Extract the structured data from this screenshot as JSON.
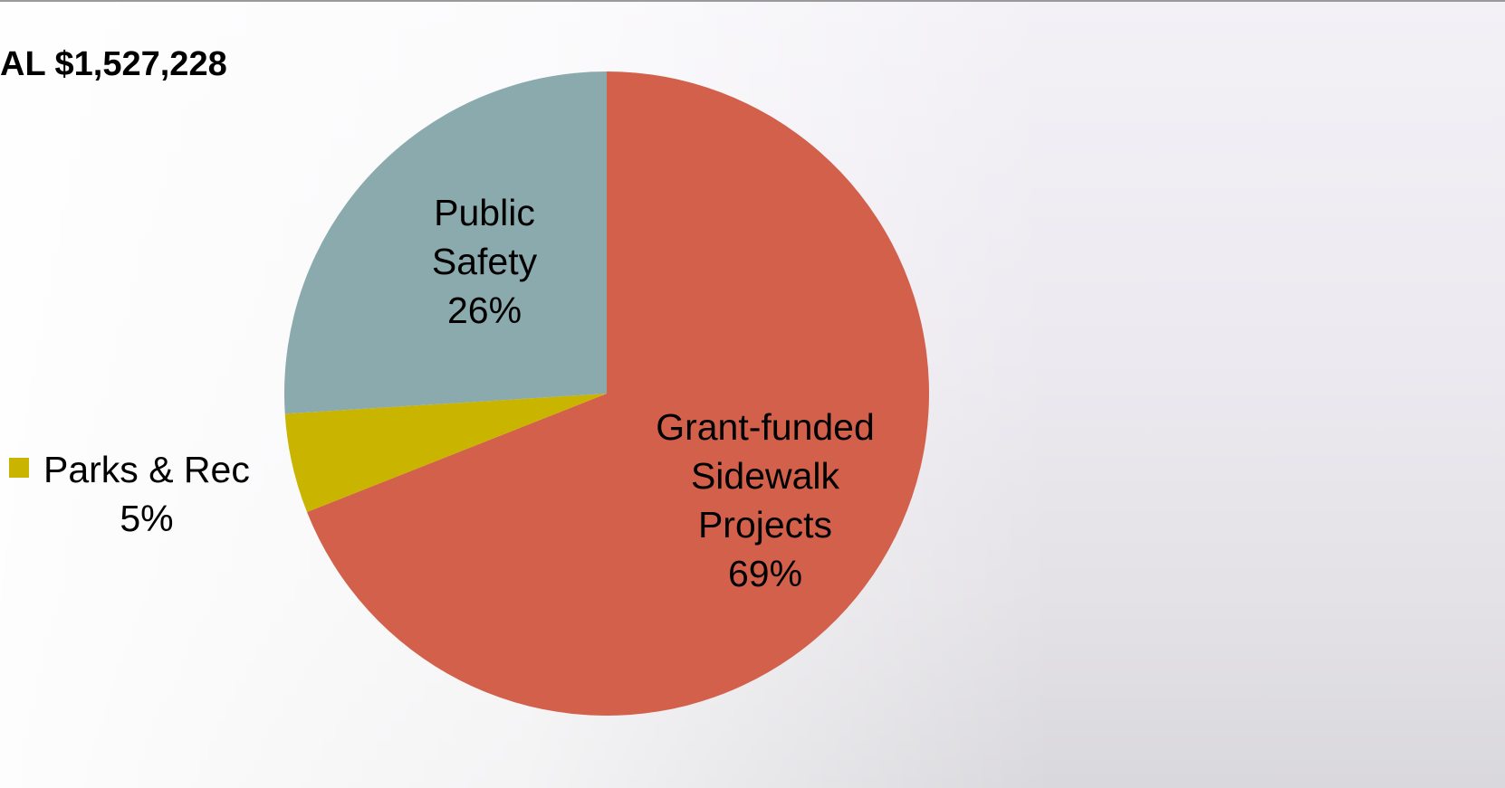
{
  "chart_data": {
    "type": "pie",
    "title": "AL $1,527,228",
    "categories": [
      "Grant-funded Sidewalk Projects",
      "Parks & Rec",
      "Public Safety"
    ],
    "values": [
      69,
      5,
      26
    ],
    "value_labels": [
      "69%",
      "5%",
      "26%"
    ],
    "colors": [
      "#D2604A",
      "#C9B400",
      "#8AAAAD"
    ]
  }
}
